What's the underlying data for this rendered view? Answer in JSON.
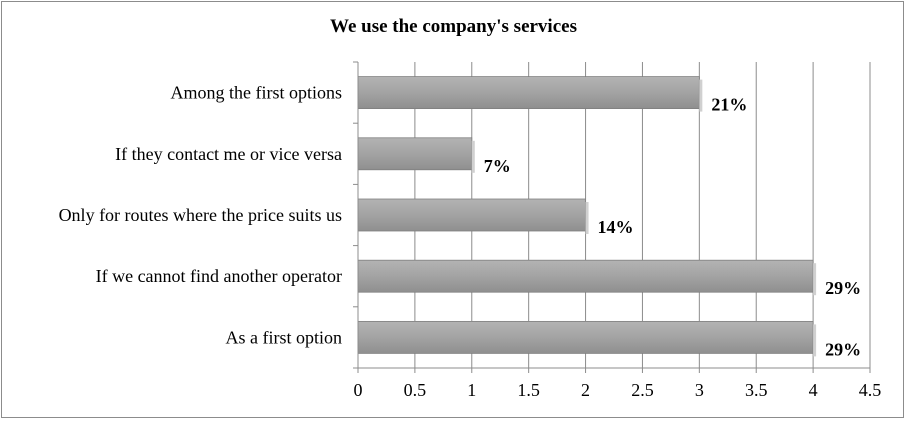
{
  "chart_data": {
    "type": "bar",
    "orientation": "horizontal",
    "title": "We use the company's services",
    "xlabel": "",
    "ylabel": "",
    "categories": [
      "Among the first options",
      "If they contact me or vice versa",
      "Only for routes where the price suits us",
      "If we cannot find another operator",
      "As a first option"
    ],
    "values": [
      3,
      1,
      2,
      4,
      4
    ],
    "data_labels": [
      "21%",
      "7%",
      "14%",
      "29%",
      "29%"
    ],
    "xlim": [
      0,
      4.5
    ],
    "ticks": [
      "0",
      "0.5",
      "1",
      "1.5",
      "2",
      "2.5",
      "3",
      "3.5",
      "4",
      "4.5"
    ],
    "grid": true,
    "legend": "none",
    "bar_color": "#a6a6a6"
  }
}
